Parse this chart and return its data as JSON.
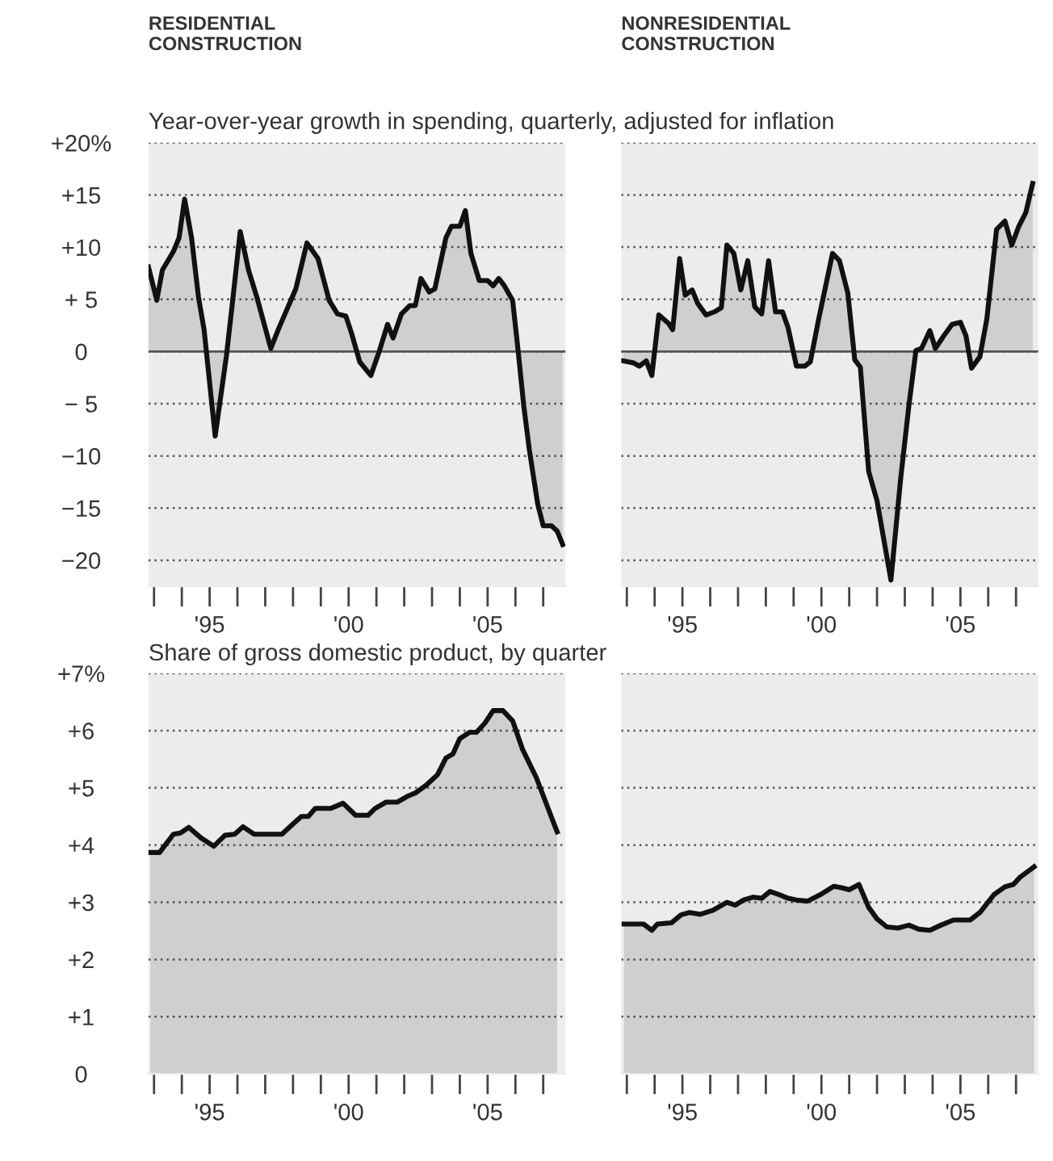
{
  "chart_data": [
    {
      "type": "area",
      "title": "RESIDENTIAL\nCONSTRUCTION",
      "subtitle": "Year-over-year growth in spending, quarterly, adjusted for inflation",
      "x": [
        1992.8,
        1993.1,
        1993.3,
        1993.7,
        1993.9,
        1994.1,
        1994.35,
        1994.6,
        1994.8,
        1995.2,
        1995.6,
        1995.8,
        1996.1,
        1996.4,
        1996.7,
        1997.2,
        1997.5,
        1998.1,
        1998.5,
        1998.9,
        1999.3,
        1999.6,
        1999.9,
        2000.1,
        2000.4,
        2000.8,
        2001.1,
        2001.4,
        2001.6,
        2001.9,
        2002.2,
        2002.4,
        2002.6,
        2002.9,
        2003.1,
        2003.5,
        2003.7,
        2004.0,
        2004.2,
        2004.4,
        2004.7,
        2005.0,
        2005.2,
        2005.4,
        2005.6,
        2005.9,
        2006.1,
        2006.3,
        2006.5,
        2006.8,
        2007.0,
        2007.3,
        2007.5,
        2007.7
      ],
      "series": [
        {
          "color": "#111111",
          "values": [
            8.1,
            4.9,
            7.8,
            9.6,
            10.9,
            14.6,
            10.9,
            5.2,
            2.1,
            -8.1,
            -0.5,
            4.2,
            11.5,
            7.8,
            5.2,
            0.3,
            2.3,
            6.0,
            10.4,
            8.9,
            4.9,
            3.6,
            3.4,
            1.8,
            -1.0,
            -2.3,
            0,
            2.6,
            1.3,
            3.6,
            4.4,
            4.4,
            7.0,
            5.7,
            6.0,
            10.9,
            12.0,
            12.0,
            13.5,
            9.4,
            6.8,
            6.8,
            6.3,
            7.0,
            6.3,
            4.9,
            0,
            -5.2,
            -9.4,
            -14.6,
            -16.7,
            -16.7,
            -17.2,
            -18.5
          ]
        }
      ],
      "xlim": [
        1992.8,
        2007.8
      ],
      "xticks": [
        {
          "value": 1993,
          "label": null
        },
        {
          "value": 1994,
          "label": null
        },
        {
          "value": 1995,
          "label": "'95"
        },
        {
          "value": 1996,
          "label": null
        },
        {
          "value": 1997,
          "label": null
        },
        {
          "value": 1998,
          "label": null
        },
        {
          "value": 1999,
          "label": null
        },
        {
          "value": 2000,
          "label": "'00"
        },
        {
          "value": 2001,
          "label": null
        },
        {
          "value": 2002,
          "label": null
        },
        {
          "value": 2003,
          "label": null
        },
        {
          "value": 2004,
          "label": null
        },
        {
          "value": 2005,
          "label": "'05"
        },
        {
          "value": 2006,
          "label": null
        },
        {
          "value": 2007,
          "label": null
        }
      ],
      "ylim": [
        -22.5,
        20
      ],
      "yticks": [
        {
          "value": 20,
          "label": "+20%"
        },
        {
          "value": 15,
          "label": "+15"
        },
        {
          "value": 10,
          "label": "+10"
        },
        {
          "value": 5,
          "label": "+ 5"
        },
        0,
        {
          "value": -5,
          "label": "− 5"
        },
        {
          "value": -10,
          "label": "−10"
        },
        {
          "value": -15,
          "label": "−15"
        },
        {
          "value": -20,
          "label": "−20"
        }
      ],
      "grid": "y",
      "ref_lines": [
        {
          "axis": "y",
          "value": 0,
          "color": "#555555"
        }
      ]
    },
    {
      "type": "area",
      "title": "NONRESIDENTIAL\nCONSTRUCTION",
      "x": [
        1992.87,
        1993.25,
        1993.45,
        1993.7,
        1993.9,
        1994.15,
        1994.5,
        1994.65,
        1994.9,
        1995.1,
        1995.35,
        1995.55,
        1995.85,
        1996.15,
        1996.4,
        1996.6,
        1996.85,
        1997.1,
        1997.35,
        1997.6,
        1997.85,
        1998.1,
        1998.35,
        1998.6,
        1998.8,
        1999.1,
        1999.4,
        1999.6,
        1999.9,
        2000.4,
        2000.65,
        2000.95,
        2001.2,
        2001.4,
        2001.7,
        2002.0,
        2002.5,
        2002.85,
        2003.15,
        2003.4,
        2003.6,
        2003.9,
        2004.1,
        2004.4,
        2004.7,
        2005.0,
        2005.2,
        2005.4,
        2005.7,
        2005.95,
        2006.3,
        2006.6,
        2006.85,
        2007.1,
        2007.35,
        2007.6
      ],
      "series": [
        {
          "color": "#111111",
          "values": [
            -0.9,
            -1.1,
            -1.4,
            -0.9,
            -2.3,
            3.5,
            2.7,
            2.1,
            8.9,
            5.4,
            5.9,
            4.6,
            3.5,
            3.8,
            4.2,
            10.2,
            9.4,
            5.9,
            8.7,
            4.3,
            3.6,
            8.7,
            3.8,
            3.8,
            2.3,
            -1.4,
            -1.4,
            -1.0,
            3.1,
            9.4,
            8.7,
            5.6,
            -0.8,
            -1.5,
            -11.5,
            -14.3,
            -21.9,
            -12.2,
            -5.1,
            0.1,
            0.3,
            2.0,
            0.3,
            1.5,
            2.6,
            2.8,
            1.5,
            -1.6,
            -0.5,
            3.1,
            11.7,
            12.5,
            10.2,
            12.0,
            13.3,
            16.1
          ]
        }
      ],
      "xlim": [
        1992.8,
        2007.8
      ],
      "xticks": [
        {
          "value": 1993,
          "label": null
        },
        {
          "value": 1994,
          "label": null
        },
        {
          "value": 1995,
          "label": "'95"
        },
        {
          "value": 1996,
          "label": null
        },
        {
          "value": 1997,
          "label": null
        },
        {
          "value": 1998,
          "label": null
        },
        {
          "value": 1999,
          "label": null
        },
        {
          "value": 2000,
          "label": "'00"
        },
        {
          "value": 2001,
          "label": null
        },
        {
          "value": 2002,
          "label": null
        },
        {
          "value": 2003,
          "label": null
        },
        {
          "value": 2004,
          "label": null
        },
        {
          "value": 2005,
          "label": "'05"
        },
        {
          "value": 2006,
          "label": null
        },
        {
          "value": 2007,
          "label": null
        }
      ],
      "ylim": [
        -22.5,
        20
      ],
      "yticks": [
        20,
        15,
        10,
        5,
        0,
        -5,
        -10,
        -15,
        -20
      ],
      "grid": "y",
      "tick_labels": "x",
      "ref_lines": [
        {
          "axis": "y",
          "value": 0,
          "color": "#555555"
        }
      ]
    },
    {
      "type": "area",
      "subtitle": "Share of gross domestic product, by quarter",
      "x": [
        1992.87,
        1993.2,
        1993.7,
        1993.95,
        1994.25,
        1994.7,
        1995.15,
        1995.55,
        1995.9,
        1996.2,
        1996.6,
        1997.1,
        1997.6,
        1998.0,
        1998.3,
        1998.55,
        1998.8,
        1999.35,
        1999.8,
        2000.25,
        2000.7,
        2000.95,
        2001.35,
        2001.75,
        2002.15,
        2002.4,
        2002.8,
        2003.2,
        2003.5,
        2003.75,
        2004.0,
        2004.35,
        2004.6,
        2004.9,
        2005.2,
        2005.55,
        2005.9,
        2006.25,
        2006.75,
        2007.5
      ],
      "series": [
        {
          "color": "#111111",
          "values": [
            3.87,
            3.87,
            4.19,
            4.21,
            4.31,
            4.12,
            3.98,
            4.17,
            4.19,
            4.32,
            4.19,
            4.19,
            4.19,
            4.37,
            4.5,
            4.5,
            4.64,
            4.64,
            4.73,
            4.52,
            4.52,
            4.64,
            4.75,
            4.75,
            4.86,
            4.91,
            5.05,
            5.23,
            5.52,
            5.59,
            5.86,
            5.97,
            5.97,
            6.13,
            6.35,
            6.35,
            6.17,
            5.68,
            5.18,
            4.23
          ]
        }
      ],
      "xlim": [
        1992.8,
        2007.8
      ],
      "xticks": [
        {
          "value": 1993,
          "label": null
        },
        {
          "value": 1994,
          "label": null
        },
        {
          "value": 1995,
          "label": "'95"
        },
        {
          "value": 1996,
          "label": null
        },
        {
          "value": 1997,
          "label": null
        },
        {
          "value": 1998,
          "label": null
        },
        {
          "value": 1999,
          "label": null
        },
        {
          "value": 2000,
          "label": "'00"
        },
        {
          "value": 2001,
          "label": null
        },
        {
          "value": 2002,
          "label": null
        },
        {
          "value": 2003,
          "label": null
        },
        {
          "value": 2004,
          "label": null
        },
        {
          "value": 2005,
          "label": "'05"
        },
        {
          "value": 2006,
          "label": null
        },
        {
          "value": 2007,
          "label": null
        }
      ],
      "ylim": [
        0,
        7
      ],
      "yticks": [
        {
          "value": 7,
          "label": "+7%"
        },
        {
          "value": 6,
          "label": "+6"
        },
        {
          "value": 5,
          "label": "+5"
        },
        {
          "value": 4,
          "label": "+4"
        },
        {
          "value": 3,
          "label": "+3"
        },
        {
          "value": 2,
          "label": "+2"
        },
        {
          "value": 1,
          "label": "+1"
        },
        0
      ],
      "grid": "y"
    },
    {
      "type": "area",
      "x": [
        1992.9,
        1993.6,
        1993.9,
        1994.1,
        1994.6,
        1994.95,
        1995.25,
        1995.65,
        1996.1,
        1996.6,
        1996.9,
        1997.2,
        1997.55,
        1997.85,
        1998.15,
        1998.5,
        1998.8,
        1999.1,
        1999.5,
        1999.95,
        2000.45,
        2000.75,
        2001.0,
        2001.35,
        2001.7,
        2002.0,
        2002.35,
        2002.75,
        2003.15,
        2003.5,
        2003.9,
        2004.3,
        2004.75,
        2005.35,
        2005.7,
        2006.2,
        2006.6,
        2006.9,
        2007.15,
        2007.65
      ],
      "series": [
        {
          "color": "#111111",
          "values": [
            2.62,
            2.62,
            2.51,
            2.62,
            2.64,
            2.78,
            2.82,
            2.79,
            2.86,
            3.0,
            2.95,
            3.04,
            3.09,
            3.07,
            3.19,
            3.13,
            3.07,
            3.04,
            3.02,
            3.13,
            3.28,
            3.25,
            3.22,
            3.31,
            2.91,
            2.71,
            2.57,
            2.55,
            2.6,
            2.53,
            2.51,
            2.6,
            2.69,
            2.69,
            2.82,
            3.13,
            3.27,
            3.31,
            3.44,
            3.62
          ]
        }
      ],
      "xlim": [
        1992.8,
        2007.8
      ],
      "xticks": [
        {
          "value": 1993,
          "label": null
        },
        {
          "value": 1994,
          "label": null
        },
        {
          "value": 1995,
          "label": "'95"
        },
        {
          "value": 1996,
          "label": null
        },
        {
          "value": 1997,
          "label": null
        },
        {
          "value": 1998,
          "label": null
        },
        {
          "value": 1999,
          "label": null
        },
        {
          "value": 2000,
          "label": "'00"
        },
        {
          "value": 2001,
          "label": null
        },
        {
          "value": 2002,
          "label": null
        },
        {
          "value": 2003,
          "label": null
        },
        {
          "value": 2004,
          "label": null
        },
        {
          "value": 2005,
          "label": "'05"
        },
        {
          "value": 2006,
          "label": null
        },
        {
          "value": 2007,
          "label": null
        }
      ],
      "ylim": [
        0,
        7
      ],
      "yticks": [
        7,
        6,
        5,
        4,
        3,
        2,
        1,
        0
      ],
      "grid": "y",
      "tick_labels": "x"
    }
  ]
}
